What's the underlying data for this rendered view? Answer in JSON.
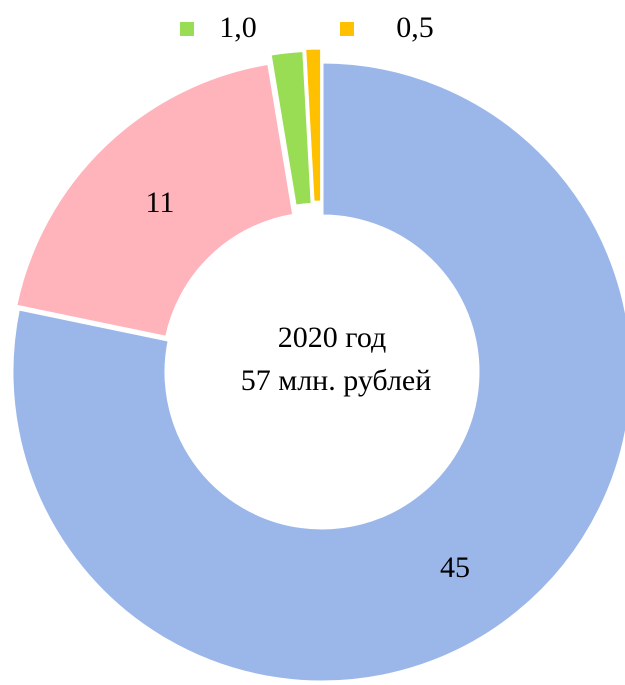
{
  "chart_data": {
    "type": "donut",
    "values": [
      45,
      11,
      1.0,
      0.5
    ],
    "value_labels": [
      "45",
      "11",
      "1,0",
      "0,5"
    ],
    "colors": [
      "#9bb7ea",
      "#ffb3ba",
      "#99dd55",
      "#ffc000"
    ],
    "center_text": [
      "2020 год",
      "57 млн. рублей"
    ]
  }
}
